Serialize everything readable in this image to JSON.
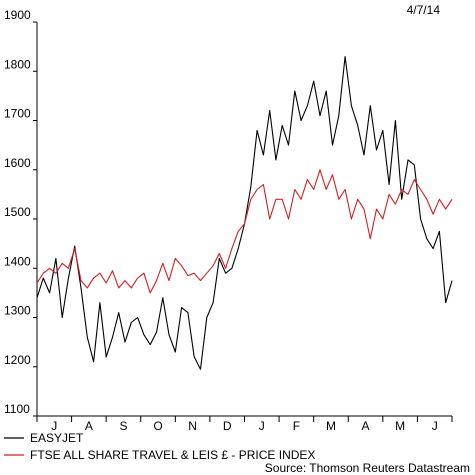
{
  "chart_data": {
    "type": "line",
    "date_label": "4/7/14",
    "source": "Source: Thomson Reuters Datastream",
    "ylim": [
      1100,
      1900
    ],
    "yticks": [
      1100,
      1200,
      1300,
      1400,
      1500,
      1600,
      1700,
      1800,
      1900
    ],
    "month_labels": [
      "J",
      "A",
      "S",
      "O",
      "N",
      "D",
      "J",
      "F",
      "M",
      "A",
      "M",
      "J"
    ],
    "grid": false,
    "legend_position": "bottom-left",
    "series": [
      {
        "name": "EASYJET",
        "color": "#000000",
        "values": [
          1340,
          1380,
          1350,
          1420,
          1300,
          1380,
          1445,
          1360,
          1260,
          1210,
          1330,
          1220,
          1260,
          1310,
          1250,
          1290,
          1300,
          1265,
          1245,
          1270,
          1340,
          1265,
          1230,
          1320,
          1310,
          1220,
          1195,
          1300,
          1330,
          1420,
          1390,
          1400,
          1440,
          1490,
          1565,
          1680,
          1630,
          1720,
          1620,
          1690,
          1650,
          1760,
          1700,
          1730,
          1780,
          1710,
          1760,
          1650,
          1710,
          1830,
          1730,
          1690,
          1630,
          1730,
          1640,
          1680,
          1570,
          1700,
          1540,
          1620,
          1610,
          1500,
          1460,
          1440,
          1475,
          1330,
          1375
        ]
      },
      {
        "name": "FTSE ALL SHARE TRAVEL & LEIS £ - PRICE INDEX",
        "color": "#d42020",
        "values": [
          1370,
          1390,
          1400,
          1390,
          1410,
          1400,
          1440,
          1375,
          1360,
          1380,
          1390,
          1370,
          1395,
          1360,
          1375,
          1360,
          1380,
          1390,
          1350,
          1375,
          1410,
          1375,
          1420,
          1405,
          1385,
          1390,
          1375,
          1390,
          1405,
          1430,
          1400,
          1440,
          1475,
          1490,
          1540,
          1560,
          1570,
          1500,
          1540,
          1540,
          1500,
          1560,
          1540,
          1580,
          1560,
          1600,
          1560,
          1590,
          1540,
          1560,
          1500,
          1540,
          1520,
          1460,
          1520,
          1500,
          1550,
          1530,
          1560,
          1550,
          1580,
          1560,
          1540,
          1510,
          1540,
          1520,
          1540
        ]
      }
    ]
  }
}
